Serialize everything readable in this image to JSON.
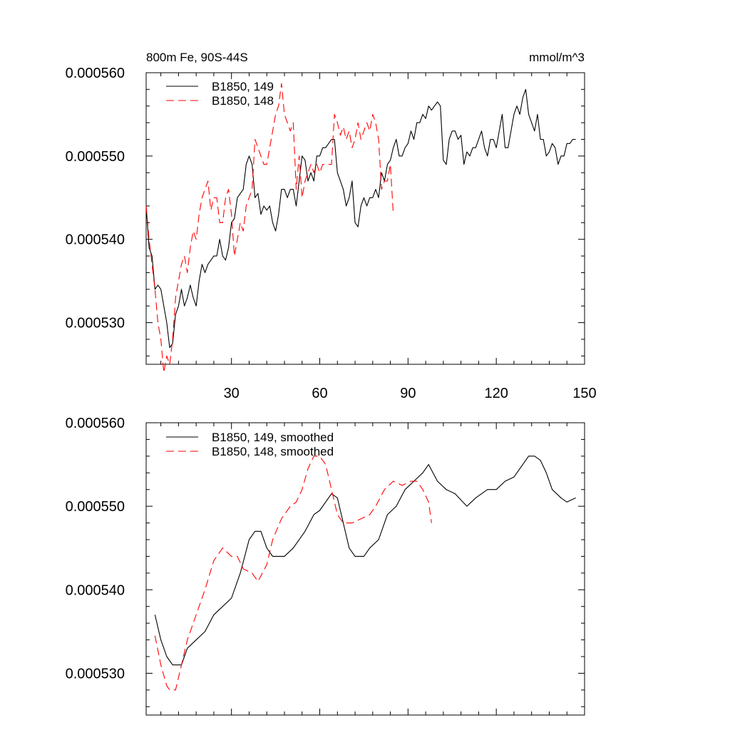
{
  "chart_data": [
    {
      "type": "line",
      "title_left": "800m Fe, 90S-44S",
      "title_right": "mmol/m^3",
      "xlim": [
        1,
        150
      ],
      "ylim": [
        0.000525,
        0.00056
      ],
      "yticks": [
        0.00053,
        0.00054,
        0.00055,
        0.00056
      ],
      "ytick_labels": [
        "0.000530",
        "0.000540",
        "0.000550",
        "0.000560"
      ],
      "xticks": [
        30,
        60,
        90,
        120,
        150
      ],
      "xtick_labels": [
        "30",
        "60",
        "90",
        "120",
        "150"
      ],
      "legend_position": "top-left",
      "series": [
        {
          "name": "B1850, 149",
          "color": "#000000",
          "dash": "solid",
          "values": [
            0.000544,
            0.000539,
            0.000538,
            0.000534,
            0.0005345,
            0.000534,
            0.000532,
            0.00053,
            0.000527,
            0.0005275,
            0.000531,
            0.000532,
            0.000534,
            0.000532,
            0.000533,
            0.0005345,
            0.000533,
            0.000532,
            0.000535,
            0.000537,
            0.000536,
            0.000537,
            0.0005375,
            0.000538,
            0.000538,
            0.00054,
            0.000538,
            0.0005375,
            0.000539,
            0.000542,
            0.0005425,
            0.000545,
            0.0005455,
            0.000546,
            0.000549,
            0.00055,
            0.000549,
            0.000545,
            0.0005455,
            0.000543,
            0.000544,
            0.0005435,
            0.000544,
            0.000542,
            0.000541,
            0.000543,
            0.000546,
            0.000546,
            0.000545,
            0.000546,
            0.000546,
            0.000544,
            0.000547,
            0.00055,
            0.0005495,
            0.000547,
            0.000548,
            0.000547,
            0.00055,
            0.00055,
            0.000551,
            0.000551,
            0.0005515,
            0.000552,
            0.000552,
            0.000548,
            0.000547,
            0.000546,
            0.000544,
            0.000545,
            0.000547,
            0.000542,
            0.0005415,
            0.000544,
            0.000545,
            0.000544,
            0.000545,
            0.000545,
            0.000546,
            0.000545,
            0.000548,
            0.000547,
            0.000549,
            0.0005495,
            0.000551,
            0.000552,
            0.00055,
            0.00055,
            0.000551,
            0.0005515,
            0.000553,
            0.000552,
            0.000554,
            0.000554,
            0.000555,
            0.0005545,
            0.000556,
            0.0005555,
            0.000556,
            0.0005565,
            0.000556,
            0.0005495,
            0.000549,
            0.000552,
            0.000553,
            0.000553,
            0.000552,
            0.0005525,
            0.000549,
            0.0005505,
            0.00055,
            0.000551,
            0.000551,
            0.000552,
            0.000553,
            0.000551,
            0.00055,
            0.000552,
            0.000552,
            0.000551,
            0.000553,
            0.000555,
            0.000551,
            0.000551,
            0.000553,
            0.000555,
            0.000556,
            0.000555,
            0.000557,
            0.000558,
            0.000555,
            0.000554,
            0.000553,
            0.000555,
            0.000552,
            0.000552,
            0.00055,
            0.0005505,
            0.0005515,
            0.000551,
            0.000549,
            0.00055,
            0.00055,
            0.0005515,
            0.0005515,
            0.000552,
            0.000552
          ]
        },
        {
          "name": "B1850, 148",
          "color": "#ff0000",
          "dash": "dashed",
          "values": [
            0.000544,
            0.00054,
            0.000537,
            0.000534,
            0.00053,
            0.000528,
            0.000524,
            0.000526,
            0.000525,
            0.000528,
            0.000533,
            0.000535,
            0.000537,
            0.000538,
            0.000536,
            0.000539,
            0.000541,
            0.00054,
            0.000543,
            0.000545,
            0.000546,
            0.000547,
            0.0005435,
            0.000545,
            0.000545,
            0.000542,
            0.000542,
            0.000545,
            0.000546,
            0.000543,
            0.000538,
            0.00054,
            0.000542,
            0.000541,
            0.000544,
            0.000545,
            0.000546,
            0.000552,
            0.000551,
            0.00055,
            0.000549,
            0.000549,
            0.000551,
            0.000553,
            0.000555,
            0.000556,
            0.0005587,
            0.000555,
            0.000554,
            0.000553,
            0.000554,
            0.000546,
            0.00055,
            0.000545,
            0.000547,
            0.000548,
            0.000549,
            0.000548,
            0.000549,
            0.000548,
            0.000549,
            0.000549,
            0.000549,
            0.000549,
            0.000555,
            0.000554,
            0.0005525,
            0.0005535,
            0.000552,
            0.000553,
            0.000551,
            0.000552,
            0.000554,
            0.000552,
            0.000553,
            0.000554,
            0.000553,
            0.000555,
            0.000554,
            0.000552,
            0.000546,
            0.000547,
            0.000547,
            0.000549,
            0.000543
          ]
        }
      ]
    },
    {
      "type": "line",
      "xlim": [
        1,
        150
      ],
      "ylim": [
        0.000525,
        0.00056
      ],
      "yticks": [
        0.00053,
        0.00054,
        0.00055,
        0.00056
      ],
      "ytick_labels": [
        "0.000530",
        "0.000540",
        "0.000550",
        "0.000560"
      ],
      "xticks": [
        30,
        60,
        90,
        120,
        150
      ],
      "legend_position": "top-left",
      "series": [
        {
          "name": "B1850, 149, smoothed",
          "color": "#000000",
          "dash": "solid",
          "points": [
            [
              4,
              0.000537
            ],
            [
              6,
              0.000534
            ],
            [
              8,
              0.000532
            ],
            [
              10,
              0.000531
            ],
            [
              13,
              0.000531
            ],
            [
              15,
              0.000533
            ],
            [
              18,
              0.000534
            ],
            [
              21,
              0.000535
            ],
            [
              24,
              0.000537
            ],
            [
              27,
              0.000538
            ],
            [
              30,
              0.000539
            ],
            [
              33,
              0.000542
            ],
            [
              36,
              0.000546
            ],
            [
              38,
              0.000547
            ],
            [
              40,
              0.000547
            ],
            [
              42,
              0.000545
            ],
            [
              44,
              0.000544
            ],
            [
              46,
              0.000544
            ],
            [
              48,
              0.000544
            ],
            [
              51,
              0.000545
            ],
            [
              55,
              0.000547
            ],
            [
              58,
              0.000549
            ],
            [
              60,
              0.0005495
            ],
            [
              63,
              0.000551
            ],
            [
              64,
              0.0005515
            ],
            [
              66,
              0.000551
            ],
            [
              68,
              0.000548
            ],
            [
              70,
              0.000545
            ],
            [
              72,
              0.000544
            ],
            [
              75,
              0.000544
            ],
            [
              77,
              0.000545
            ],
            [
              80,
              0.000546
            ],
            [
              83,
              0.000549
            ],
            [
              86,
              0.00055
            ],
            [
              89,
              0.000552
            ],
            [
              92,
              0.000553
            ],
            [
              95,
              0.000554
            ],
            [
              97,
              0.000555
            ],
            [
              100,
              0.000553
            ],
            [
              103,
              0.000552
            ],
            [
              106,
              0.0005515
            ],
            [
              110,
              0.00055
            ],
            [
              113,
              0.000551
            ],
            [
              117,
              0.000552
            ],
            [
              120,
              0.000552
            ],
            [
              123,
              0.000553
            ],
            [
              126,
              0.0005535
            ],
            [
              129,
              0.000555
            ],
            [
              131,
              0.000556
            ],
            [
              133,
              0.000556
            ],
            [
              135,
              0.0005555
            ],
            [
              137,
              0.000554
            ],
            [
              139,
              0.000552
            ],
            [
              142,
              0.000551
            ],
            [
              144,
              0.0005505
            ],
            [
              147,
              0.000551
            ]
          ]
        },
        {
          "name": "B1850, 148, smoothed",
          "color": "#ff0000",
          "dash": "dashed",
          "points": [
            [
              4,
              0.0005345
            ],
            [
              6,
              0.000531
            ],
            [
              8,
              0.0005285
            ],
            [
              9,
              0.000528
            ],
            [
              11,
              0.000528
            ],
            [
              13,
              0.000531
            ],
            [
              15,
              0.000534
            ],
            [
              18,
              0.000537
            ],
            [
              21,
              0.00054
            ],
            [
              24,
              0.0005435
            ],
            [
              27,
              0.000545
            ],
            [
              30,
              0.000544
            ],
            [
              32,
              0.000544
            ],
            [
              34,
              0.0005425
            ],
            [
              37,
              0.000542
            ],
            [
              39,
              0.000541
            ],
            [
              42,
              0.000543
            ],
            [
              44,
              0.000546
            ],
            [
              47,
              0.0005485
            ],
            [
              50,
              0.00055
            ],
            [
              52,
              0.0005505
            ],
            [
              54,
              0.000552
            ],
            [
              56,
              0.0005545
            ],
            [
              58,
              0.000556
            ],
            [
              60,
              0.000556
            ],
            [
              62,
              0.000555
            ],
            [
              64,
              0.000552
            ],
            [
              66,
              0.000549
            ],
            [
              68,
              0.000548
            ],
            [
              71,
              0.000548
            ],
            [
              74,
              0.0005485
            ],
            [
              77,
              0.000549
            ],
            [
              79,
              0.00055
            ],
            [
              82,
              0.000552
            ],
            [
              85,
              0.000553
            ],
            [
              88,
              0.0005525
            ],
            [
              91,
              0.000553
            ],
            [
              93,
              0.000553
            ],
            [
              95,
              0.000552
            ],
            [
              97,
              0.0005505
            ],
            [
              98,
              0.000548
            ]
          ]
        }
      ]
    }
  ]
}
